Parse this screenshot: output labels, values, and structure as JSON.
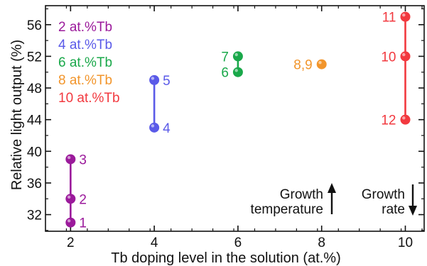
{
  "chart_data": {
    "type": "scatter",
    "xlabel": "Tb doping level in the solution (at.%)",
    "ylabel": "Relative light output (%)",
    "xlim": [
      1.4,
      10.45
    ],
    "ylim": [
      29.9,
      58.4
    ],
    "x_ticks": [
      2,
      4,
      6,
      8,
      10
    ],
    "y_ticks": [
      32,
      36,
      40,
      44,
      48,
      52,
      56
    ],
    "grid": false,
    "legend_position": "top-left",
    "series": [
      {
        "name": "2 at.%Tb",
        "color": "#9b1a9b",
        "points": [
          {
            "label": "1",
            "x": 2,
            "y": 31
          },
          {
            "label": "2",
            "x": 2,
            "y": 34
          },
          {
            "label": "3",
            "x": 2,
            "y": 39
          }
        ]
      },
      {
        "name": "4 at.%Tb",
        "color": "#5a5ae8",
        "points": [
          {
            "label": "4",
            "x": 4,
            "y": 43
          },
          {
            "label": "5",
            "x": 4,
            "y": 49
          }
        ]
      },
      {
        "name": "6 at.%Tb",
        "color": "#1aa84a",
        "points": [
          {
            "label": "6",
            "x": 6,
            "y": 50
          },
          {
            "label": "7",
            "x": 6,
            "y": 52
          }
        ]
      },
      {
        "name": "8 at.%Tb",
        "color": "#f2952b",
        "points": [
          {
            "label": "8,9",
            "x": 8,
            "y": 51
          }
        ]
      },
      {
        "name": "10 at.%Tb",
        "color": "#f2393f",
        "points": [
          {
            "label": "12",
            "x": 10,
            "y": 44
          },
          {
            "label": "10",
            "x": 10,
            "y": 52
          },
          {
            "label": "11",
            "x": 10,
            "y": 57
          }
        ]
      }
    ],
    "annotations": [
      {
        "text_lines": [
          "Growth",
          "temperature"
        ],
        "arrow": "up"
      },
      {
        "text_lines": [
          "Growth",
          "rate"
        ],
        "arrow": "down"
      }
    ]
  }
}
